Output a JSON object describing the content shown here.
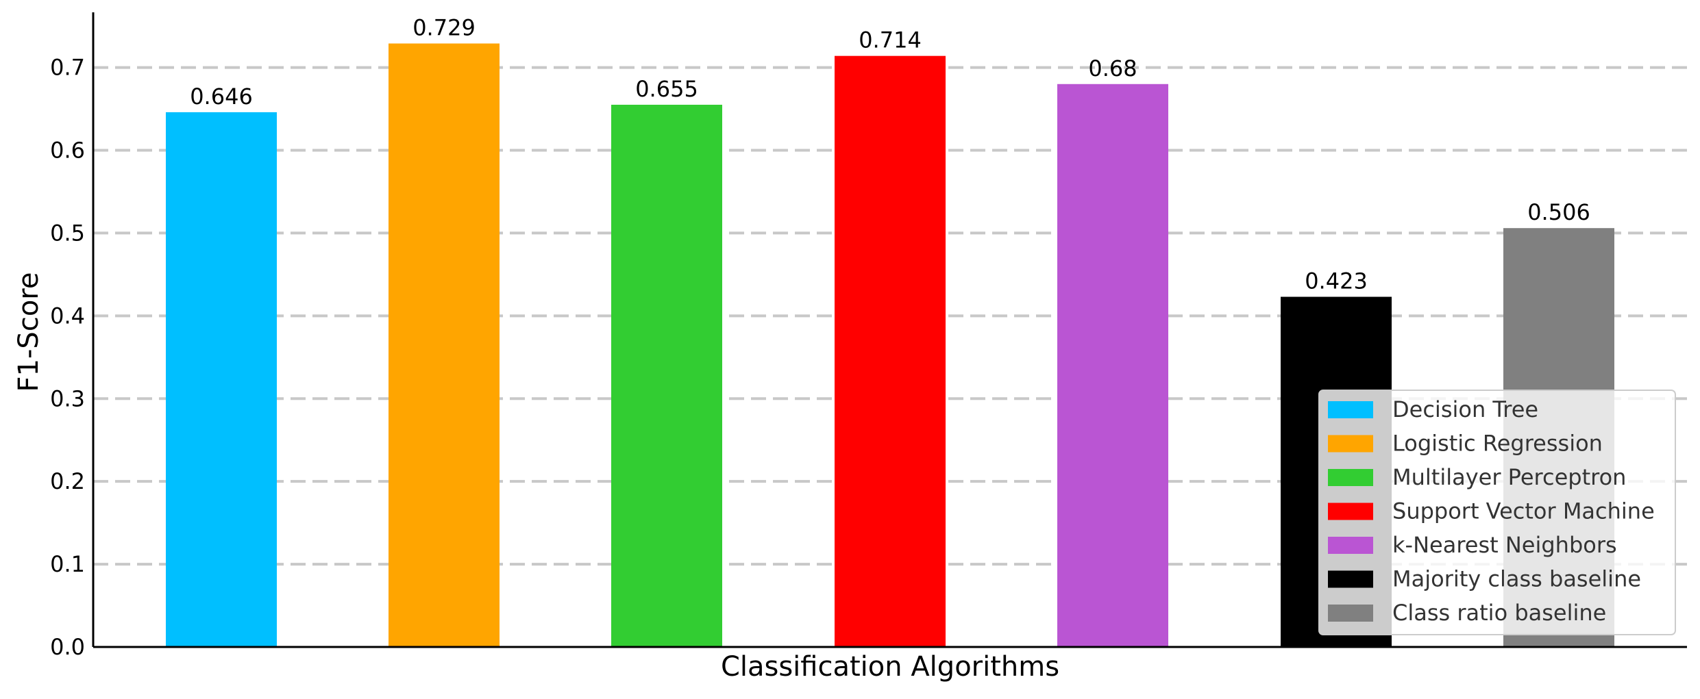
{
  "chart_data": {
    "type": "bar",
    "title": "",
    "xlabel": "Classification Algorithms",
    "ylabel": "F1-Score",
    "ylim": [
      0,
      0.765
    ],
    "yticks": [
      "0.0",
      "0.1",
      "0.2",
      "0.3",
      "0.4",
      "0.5",
      "0.6",
      "0.7"
    ],
    "grid": "horizontal dashed",
    "legend_position": "lower-right",
    "categories": [
      "Decision Tree",
      "Logistic Regression",
      "Multilayer Perceptron",
      "Support Vector Machine",
      "k-Nearest Neighbors",
      "Majority class baseline",
      "Class ratio baseline"
    ],
    "values": [
      0.646,
      0.729,
      0.655,
      0.714,
      0.68,
      0.423,
      0.506
    ],
    "value_labels": [
      "0.646",
      "0.729",
      "0.655",
      "0.714",
      "0.68",
      "0.423",
      "0.506"
    ],
    "colors": [
      "#00bfff",
      "#ffa500",
      "#32cd32",
      "#ff0000",
      "#ba55d3",
      "#000000",
      "#808080"
    ],
    "grid_color": "#c8c8c8",
    "axis_color": "#000000"
  }
}
